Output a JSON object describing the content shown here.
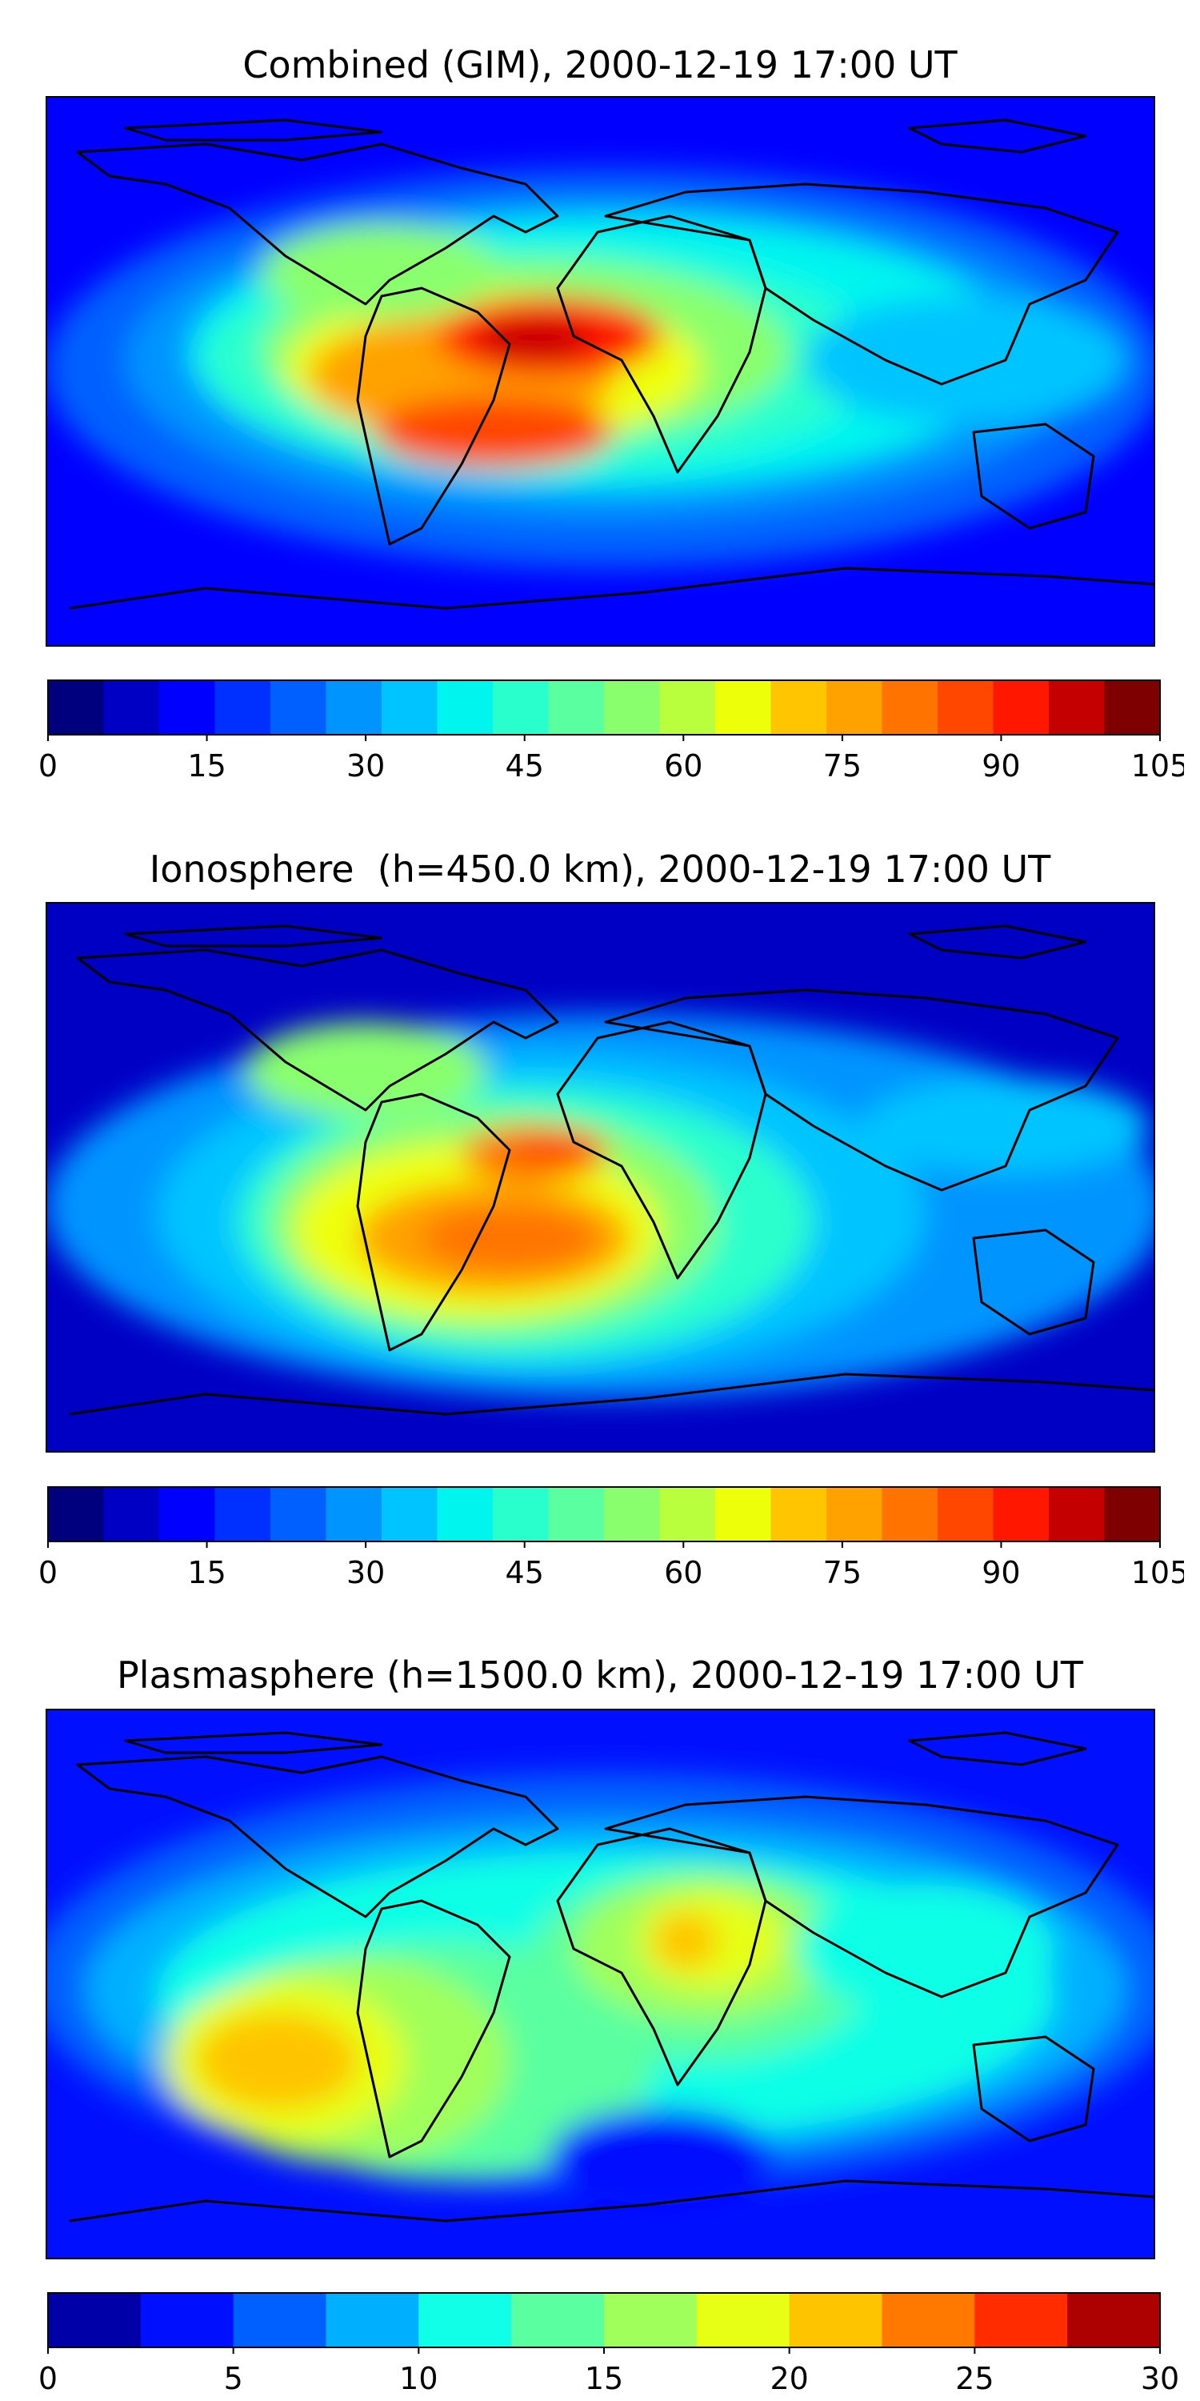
{
  "panels": [
    {
      "title": "Combined (GIM), 2000-12-19 17:00 UT",
      "colorbar": {
        "colors": [
          "#00007f",
          "#0000c5",
          "#0000ff",
          "#0030ff",
          "#0060ff",
          "#0094ff",
          "#00c4ff",
          "#00f5ef",
          "#29ffcd",
          "#5affa0",
          "#8aff6d",
          "#b9ff3d",
          "#eeff0a",
          "#ffc600",
          "#ffa200",
          "#ff7300",
          "#ff4700",
          "#ff1700",
          "#c40000",
          "#7f0000"
        ],
        "ticks": [
          "0",
          "15",
          "30",
          "45",
          "60",
          "75",
          "90",
          "105"
        ]
      }
    },
    {
      "title": "Ionosphere  (h=450.0 km), 2000-12-19 17:00 UT",
      "colorbar": {
        "colors": [
          "#00007f",
          "#0000c5",
          "#0000ff",
          "#0030ff",
          "#0060ff",
          "#0094ff",
          "#00c4ff",
          "#00f5ef",
          "#29ffcd",
          "#5affa0",
          "#8aff6d",
          "#b9ff3d",
          "#eeff0a",
          "#ffc600",
          "#ffa200",
          "#ff7300",
          "#ff4700",
          "#ff1700",
          "#c40000",
          "#7f0000"
        ],
        "ticks": [
          "0",
          "15",
          "30",
          "45",
          "60",
          "75",
          "90",
          "105"
        ]
      }
    },
    {
      "title": "Plasmasphere (h=1500.0 km), 2000-12-19 17:00 UT",
      "colorbar": {
        "colors": [
          "#0000a8",
          "#0010ff",
          "#0060ff",
          "#00b0ff",
          "#10ffe6",
          "#5affa0",
          "#a0ff5a",
          "#e6ff14",
          "#ffc400",
          "#ff7800",
          "#ff2c00",
          "#ad0000"
        ],
        "ticks": [
          "0",
          "5",
          "10",
          "15",
          "20",
          "25",
          "30"
        ]
      }
    }
  ]
}
